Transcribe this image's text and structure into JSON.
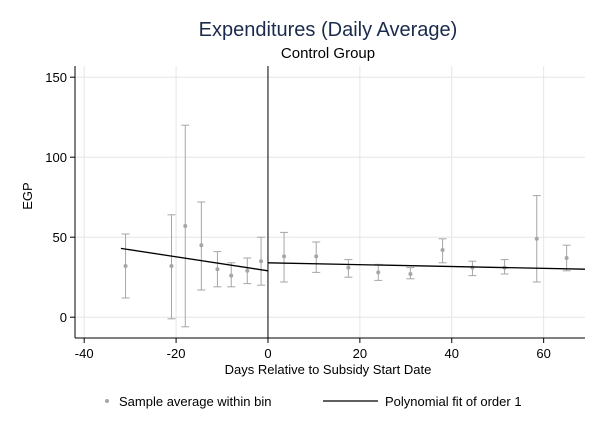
{
  "chart_data": {
    "type": "scatter",
    "title": "Expenditures (Daily Average)",
    "subtitle": "Control Group",
    "xlabel": "Days Relative to Subsidy Start Date",
    "ylabel": "EGP",
    "xlim": [
      -42,
      69
    ],
    "ylim": [
      -13,
      157
    ],
    "xticks": [
      -40,
      -20,
      0,
      20,
      40,
      60
    ],
    "yticks": [
      0,
      50,
      100,
      150
    ],
    "grid": true,
    "legend_position": "bottom",
    "colors": {
      "points": "#a6a6a6",
      "fit": "#000000",
      "grid": "#e6e6e6",
      "cutoff": "#000000"
    },
    "series": [
      {
        "name": "Sample average within bin",
        "type": "scatter_errorbar",
        "points": [
          {
            "x": -31,
            "y": 32,
            "lo": 12,
            "hi": 52
          },
          {
            "x": -21,
            "y": 32,
            "lo": -1,
            "hi": 64
          },
          {
            "x": -18,
            "y": 57,
            "lo": -6,
            "hi": 120
          },
          {
            "x": -14.5,
            "y": 45,
            "lo": 17,
            "hi": 72
          },
          {
            "x": -11,
            "y": 30,
            "lo": 19,
            "hi": 41
          },
          {
            "x": -8,
            "y": 26,
            "lo": 19,
            "hi": 34
          },
          {
            "x": -4.5,
            "y": 29,
            "lo": 21,
            "hi": 37
          },
          {
            "x": -1.5,
            "y": 35,
            "lo": 20,
            "hi": 50
          },
          {
            "x": 3.5,
            "y": 38,
            "lo": 22,
            "hi": 53
          },
          {
            "x": 10.5,
            "y": 38,
            "lo": 28,
            "hi": 47
          },
          {
            "x": 17.5,
            "y": 31,
            "lo": 25,
            "hi": 36
          },
          {
            "x": 24,
            "y": 28,
            "lo": 23,
            "hi": 33
          },
          {
            "x": 31,
            "y": 27,
            "lo": 24,
            "hi": 31
          },
          {
            "x": 38,
            "y": 42,
            "lo": 34,
            "hi": 49
          },
          {
            "x": 44.5,
            "y": 31,
            "lo": 26,
            "hi": 35
          },
          {
            "x": 51.5,
            "y": 31,
            "lo": 27,
            "hi": 36
          },
          {
            "x": 58.5,
            "y": 49,
            "lo": 22,
            "hi": 76
          },
          {
            "x": 65,
            "y": 37,
            "lo": 29,
            "hi": 45
          }
        ]
      },
      {
        "name": "Polynomial fit of order 1",
        "type": "line",
        "segments": [
          [
            {
              "x": -32,
              "y": 43
            },
            {
              "x": 0,
              "y": 29
            }
          ],
          [
            {
              "x": 0,
              "y": 34
            },
            {
              "x": 69,
              "y": 30
            }
          ]
        ]
      }
    ],
    "vlines": [
      0
    ]
  }
}
